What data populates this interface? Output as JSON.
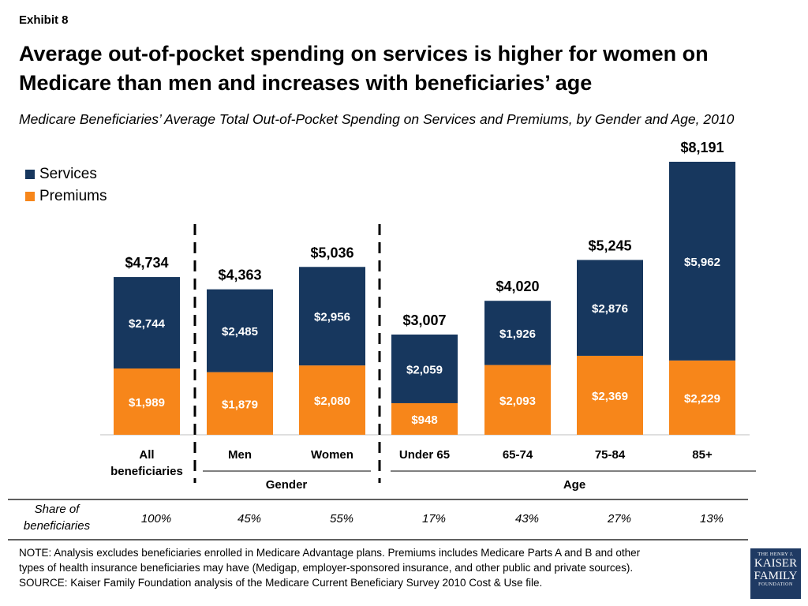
{
  "exhibit_label": "Exhibit 8",
  "title": "Average out-of-pocket spending on services is higher for women on Medicare than men and increases with beneficiaries’ age",
  "subtitle": "Medicare Beneficiaries’ Average Total Out-of-Pocket Spending on Services and Premiums, by Gender and Age, 2010",
  "colors": {
    "services": "#17375e",
    "premiums": "#f7861a"
  },
  "chart_data": {
    "type": "bar",
    "stacked": true,
    "categories": [
      "All beneficiaries",
      "Men",
      "Women",
      "Under 65",
      "65-74",
      "75-84",
      "85+"
    ],
    "category_lines": [
      [
        "All",
        "beneficiaries"
      ],
      [
        "Men"
      ],
      [
        "Women"
      ],
      [
        "Under 65"
      ],
      [
        "65-74"
      ],
      [
        "75-84"
      ],
      [
        "85+"
      ]
    ],
    "series": [
      {
        "name": "Premiums",
        "values": [
          1989,
          1879,
          2080,
          948,
          2093,
          2369,
          2229
        ],
        "labels": [
          "$1,989",
          "$1,879",
          "$2,080",
          "$948",
          "$2,093",
          "$2,369",
          "$2,229"
        ]
      },
      {
        "name": "Services",
        "values": [
          2744,
          2485,
          2956,
          2059,
          1926,
          2876,
          5962
        ],
        "labels": [
          "$2,744",
          "$2,485",
          "$2,956",
          "$2,059",
          "$1,926",
          "$2,876",
          "$5,962"
        ]
      }
    ],
    "totals": [
      4734,
      4363,
      5036,
      3007,
      4020,
      5245,
      8191
    ],
    "total_labels": [
      "$4,734",
      "$4,363",
      "$5,036",
      "$3,007",
      "$4,020",
      "$5,245",
      "$8,191"
    ],
    "groups": [
      {
        "label": "Gender",
        "categories": [
          "Men",
          "Women"
        ]
      },
      {
        "label": "Age",
        "categories": [
          "Under 65",
          "65-74",
          "75-84",
          "85+"
        ]
      }
    ],
    "legend": {
      "position": "top-left",
      "entries": [
        "Services",
        "Premiums"
      ]
    },
    "ylim": [
      0,
      8200
    ],
    "grid": false
  },
  "share_table": {
    "label_lines": [
      "Share of",
      "beneficiaries"
    ],
    "values": [
      "100%",
      "45%",
      "55%",
      "17%",
      "43%",
      "27%",
      "13%"
    ]
  },
  "note_lines": [
    "NOTE: Analysis excludes beneficiaries enrolled in Medicare Advantage plans. Premiums includes Medicare Parts A and B and other",
    "types of health insurance beneficiaries may have (Medigap, employer-sponsored insurance, and other public and private sources).",
    "SOURCE: Kaiser Family Foundation analysis of the Medicare Current Beneficiary Survey 2010 Cost & Use file."
  ],
  "logo": {
    "line1": "THE HENRY J.",
    "line2": "KAISER",
    "line3": "FAMILY",
    "line4": "FOUNDATION"
  }
}
